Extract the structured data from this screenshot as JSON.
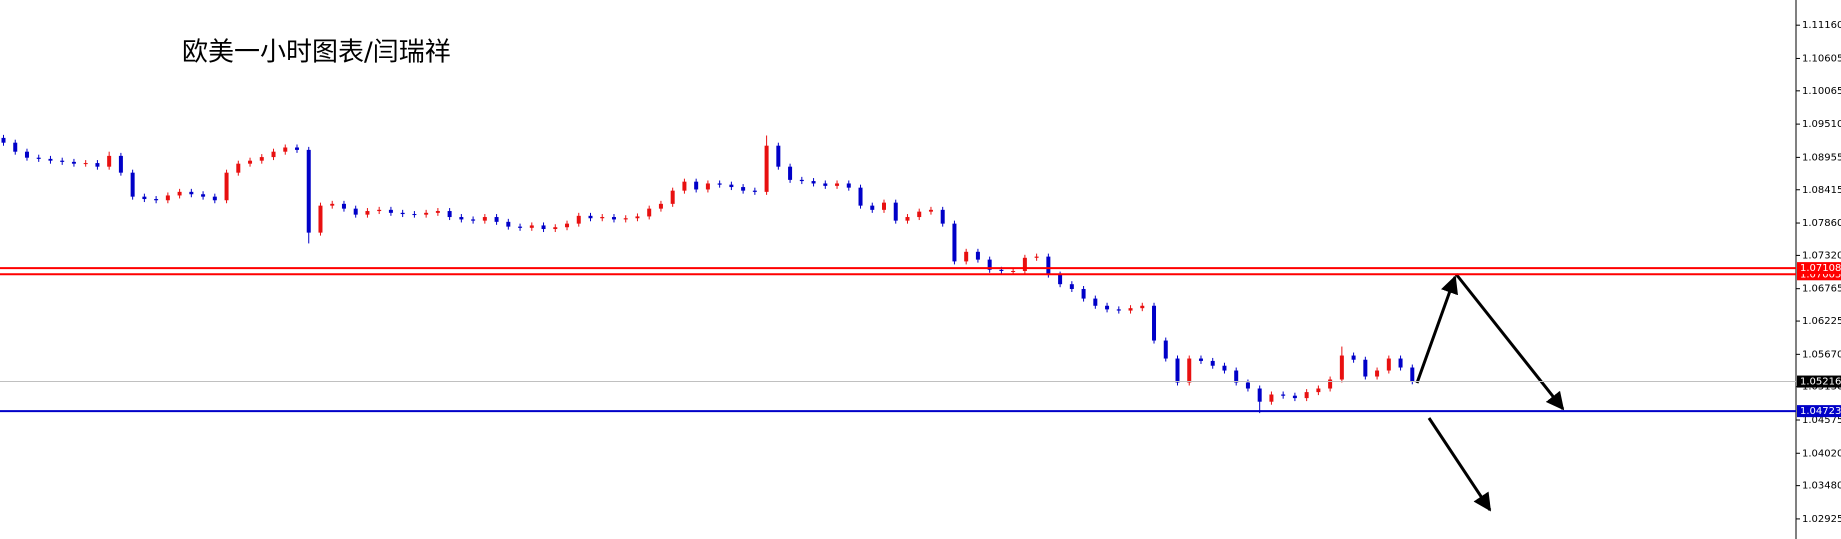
{
  "chart_data": {
    "type": "candlestick",
    "title": "欧美一小时图表/闫瑞祥",
    "up_color": "#e81010",
    "down_color": "#0000c8",
    "grid": false,
    "ylim": [
      1.0259,
      1.1158
    ],
    "yticks": [
      {
        "value": 1.1116,
        "label": "1.11160"
      },
      1.10605,
      1.10065,
      {
        "value": 1.0951,
        "label": "1.09510"
      },
      1.08955,
      1.08415,
      {
        "value": 1.0786,
        "label": "1.07860"
      },
      {
        "value": 1.0732,
        "label": "1.07320"
      },
      1.06765,
      1.06225,
      {
        "value": 1.0567,
        "label": "1.05670"
      },
      {
        "value": 1.0513,
        "label": "1.05130"
      },
      1.04575,
      {
        "value": 1.0402,
        "label": "1.04020"
      },
      {
        "value": 1.0348,
        "label": "1.03480"
      },
      1.02925
    ],
    "levels": [
      {
        "value": 1.07005,
        "color": "#ff0000",
        "tag_color": "#ff0000"
      },
      {
        "value": 1.07108,
        "color": "#ff0000",
        "tag_color": "#ff0000"
      },
      {
        "value": 1.05216,
        "color": "#c0c0c0",
        "tag_color": "#000000"
      },
      {
        "value": 1.04723,
        "color": "#0000c8",
        "tag_color": "#0000c8"
      }
    ],
    "open": [
      1.0928,
      1.092,
      1.0905,
      1.0895,
      1.0893,
      1.089,
      1.0888,
      1.0885,
      1.0886,
      1.088,
      1.0898,
      1.087,
      1.083,
      1.0826,
      1.0824,
      1.0832,
      1.0838,
      1.0834,
      1.083,
      1.0824,
      1.087,
      1.0885,
      1.089,
      1.0896,
      1.0905,
      1.0912,
      1.0908,
      1.077,
      1.0815,
      1.0818,
      1.081,
      1.08,
      1.0806,
      1.0808,
      1.0803,
      1.0801,
      1.08,
      1.0803,
      1.0806,
      1.0796,
      1.0792,
      1.079,
      1.0796,
      1.0788,
      1.078,
      1.0778,
      1.0782,
      1.0776,
      1.0779,
      1.0785,
      1.0798,
      1.0794,
      1.0796,
      1.0792,
      1.0794,
      1.0797,
      1.081,
      1.0818,
      1.084,
      1.0855,
      1.0842,
      1.0852,
      1.085,
      1.0846,
      1.084,
      1.0838,
      1.0915,
      1.088,
      1.0858,
      1.0856,
      1.0852,
      1.0848,
      1.0852,
      1.0845,
      1.0815,
      1.0808,
      1.082,
      1.079,
      1.0796,
      1.0805,
      1.0808,
      1.0785,
      1.0722,
      1.0738,
      1.0725,
      1.0708,
      1.0706,
      1.0706,
      1.0728,
      1.073,
      1.07,
      1.0684,
      1.0676,
      1.066,
      1.0648,
      1.0642,
      1.064,
      1.0644,
      1.0648,
      1.059,
      1.056,
      1.052,
      1.056,
      1.0556,
      1.0548,
      1.054,
      1.052,
      1.051,
      1.0488,
      1.05,
      1.0498,
      1.0494,
      1.0504,
      1.051,
      1.0525,
      1.0565,
      1.0558,
      1.053,
      1.054,
      1.056,
      1.0545
    ],
    "high": [
      1.0933,
      1.0925,
      1.091,
      1.09,
      1.0898,
      1.0895,
      1.0893,
      1.0891,
      1.0891,
      1.0905,
      1.0903,
      1.0875,
      1.0835,
      1.0831,
      1.0837,
      1.0843,
      1.0843,
      1.0839,
      1.0835,
      1.0875,
      1.089,
      1.0895,
      1.0901,
      1.091,
      1.0917,
      1.0917,
      1.0913,
      1.082,
      1.0823,
      1.0823,
      1.0815,
      1.0811,
      1.0813,
      1.0813,
      1.0808,
      1.0806,
      1.0808,
      1.0811,
      1.0811,
      1.0801,
      1.0797,
      1.0801,
      1.0801,
      1.0793,
      1.0785,
      1.0787,
      1.0787,
      1.0784,
      1.079,
      1.0803,
      1.0803,
      1.0801,
      1.0801,
      1.0799,
      1.0802,
      1.0815,
      1.0823,
      1.0845,
      1.086,
      1.086,
      1.0857,
      1.0857,
      1.0855,
      1.0851,
      1.0845,
      1.0932,
      1.092,
      1.0885,
      1.0863,
      1.0861,
      1.0857,
      1.0857,
      1.0857,
      1.085,
      1.082,
      1.0825,
      1.0825,
      1.0801,
      1.081,
      1.0813,
      1.0813,
      1.079,
      1.0743,
      1.0743,
      1.073,
      1.0713,
      1.0711,
      1.0733,
      1.0735,
      1.0735,
      1.0705,
      1.0689,
      1.0681,
      1.0665,
      1.0653,
      1.0647,
      1.0649,
      1.0653,
      1.0653,
      1.0595,
      1.0565,
      1.0565,
      1.0565,
      1.0561,
      1.0553,
      1.0545,
      1.0525,
      1.0515,
      1.0505,
      1.0505,
      1.0503,
      1.0509,
      1.0515,
      1.053,
      1.058,
      1.057,
      1.0563,
      1.0545,
      1.0565,
      1.0565,
      1.055
    ],
    "low": [
      1.0915,
      1.09,
      1.089,
      1.0888,
      1.0885,
      1.0883,
      1.088,
      1.088,
      1.0875,
      1.0875,
      1.0865,
      1.0825,
      1.0821,
      1.0819,
      1.0819,
      1.0827,
      1.0829,
      1.0825,
      1.0819,
      1.0819,
      1.0865,
      1.088,
      1.0885,
      1.0891,
      1.09,
      1.0903,
      1.0752,
      1.0765,
      1.081,
      1.0805,
      1.0795,
      1.0795,
      1.0801,
      1.0798,
      1.0796,
      1.0795,
      1.0795,
      1.0798,
      1.0791,
      1.0787,
      1.0785,
      1.0785,
      1.0783,
      1.0775,
      1.0773,
      1.0773,
      1.0771,
      1.0771,
      1.0774,
      1.078,
      1.0789,
      1.0789,
      1.0787,
      1.0787,
      1.0789,
      1.0792,
      1.0805,
      1.0813,
      1.0835,
      1.0837,
      1.0837,
      1.0845,
      1.0841,
      1.0835,
      1.0833,
      1.0833,
      1.0875,
      1.0853,
      1.0851,
      1.0847,
      1.0843,
      1.0843,
      1.084,
      1.081,
      1.0803,
      1.0803,
      1.0785,
      1.0785,
      1.0791,
      1.08,
      1.078,
      1.0717,
      1.0717,
      1.072,
      1.0703,
      1.0701,
      1.0701,
      1.0701,
      1.0723,
      1.0695,
      1.0679,
      1.0671,
      1.0655,
      1.0643,
      1.0637,
      1.0635,
      1.0635,
      1.0639,
      1.0585,
      1.0555,
      1.0515,
      1.0515,
      1.0551,
      1.0543,
      1.0535,
      1.0515,
      1.0505,
      1.0469,
      1.0483,
      1.0493,
      1.0489,
      1.0489,
      1.0499,
      1.0505,
      1.052,
      1.0553,
      1.0525,
      1.0525,
      1.0535,
      1.054,
      1.0517
    ],
    "close": [
      1.092,
      1.0905,
      1.0895,
      1.0893,
      1.089,
      1.0888,
      1.0885,
      1.0886,
      1.088,
      1.0898,
      1.087,
      1.083,
      1.0826,
      1.0824,
      1.0832,
      1.0838,
      1.0834,
      1.083,
      1.0824,
      1.087,
      1.0885,
      1.089,
      1.0896,
      1.0905,
      1.0912,
      1.0908,
      1.077,
      1.0815,
      1.0818,
      1.081,
      1.08,
      1.0806,
      1.0808,
      1.0803,
      1.0801,
      1.08,
      1.0803,
      1.0806,
      1.0796,
      1.0792,
      1.079,
      1.0796,
      1.0788,
      1.078,
      1.0778,
      1.0782,
      1.0776,
      1.0779,
      1.0785,
      1.0798,
      1.0794,
      1.0796,
      1.0792,
      1.0794,
      1.0797,
      1.081,
      1.0818,
      1.084,
      1.0855,
      1.0842,
      1.0852,
      1.085,
      1.0846,
      1.084,
      1.0838,
      1.0915,
      1.088,
      1.0858,
      1.0856,
      1.0852,
      1.0848,
      1.0852,
      1.0845,
      1.0815,
      1.0808,
      1.082,
      1.079,
      1.0796,
      1.0805,
      1.0808,
      1.0785,
      1.0722,
      1.0738,
      1.0725,
      1.0708,
      1.0706,
      1.0706,
      1.0728,
      1.073,
      1.07,
      1.0684,
      1.0676,
      1.066,
      1.0648,
      1.0642,
      1.064,
      1.0644,
      1.0648,
      1.059,
      1.056,
      1.052,
      1.056,
      1.0556,
      1.0548,
      1.054,
      1.052,
      1.051,
      1.0488,
      1.05,
      1.0498,
      1.0494,
      1.0504,
      1.051,
      1.0525,
      1.0565,
      1.0558,
      1.053,
      1.054,
      1.056,
      1.0545,
      1.0522
    ]
  }
}
